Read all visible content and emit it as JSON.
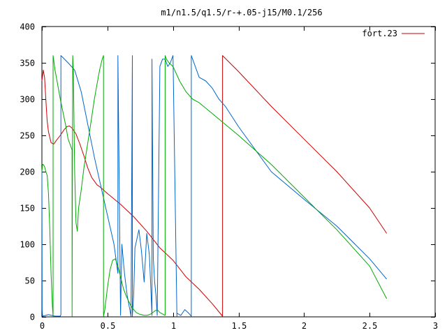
{
  "chart_data": {
    "type": "line",
    "title": "m1/n1.5/q1.5/r-+.05-j15/M0.1/256",
    "xlabel": "",
    "ylabel": "",
    "xlim": [
      0,
      3
    ],
    "ylim": [
      0,
      400
    ],
    "xticks": [
      0,
      0.5,
      1,
      1.5,
      2,
      2.5,
      3
    ],
    "xtick_labels": [
      "0",
      "0.5",
      "1",
      "1.5",
      "2",
      "2.5",
      "3"
    ],
    "yticks": [
      0,
      50,
      100,
      150,
      200,
      250,
      300,
      350,
      400
    ],
    "ytick_labels": [
      "0",
      "50",
      "100",
      "150",
      "200",
      "250",
      "300",
      "350",
      "400"
    ],
    "grid": false,
    "legend": {
      "position": "top-right",
      "entries": [
        "fort.23"
      ]
    },
    "series": [
      {
        "name": "fort.23",
        "color": "#cc0000",
        "x": [
          0,
          0.01,
          0.02,
          0.03,
          0.04,
          0.05,
          0.07,
          0.09,
          0.11,
          0.14,
          0.17,
          0.19,
          0.21,
          0.23,
          0.26,
          0.29,
          0.32,
          0.35,
          0.38,
          0.42,
          0.45,
          0.5,
          0.6,
          0.7,
          0.8,
          0.9,
          1.0,
          1.1,
          1.2,
          1.3,
          1.378,
          1.378,
          1.5,
          1.75,
          2.0,
          2.25,
          2.5,
          2.63
        ],
        "y": [
          325,
          340,
          330,
          300,
          270,
          255,
          240,
          238,
          243,
          250,
          258,
          262,
          263,
          260,
          252,
          238,
          222,
          205,
          192,
          182,
          178,
          170,
          155,
          138,
          118,
          95,
          78,
          55,
          38,
          18,
          1,
          360,
          338,
          290,
          245,
          200,
          150,
          115
        ]
      },
      {
        "name": "",
        "color": "#0066cc",
        "x": [
          0,
          0.002,
          0.005,
          0.05,
          0.1,
          0.14,
          0.145,
          0.145,
          0.2,
          0.25,
          0.3,
          0.35,
          0.4,
          0.45,
          0.5,
          0.55,
          0.58,
          0.58,
          0.6,
          0.61,
          0.63,
          0.65,
          0.68,
          0.69,
          0.69,
          0.7,
          0.71,
          0.74,
          0.76,
          0.78,
          0.8,
          0.82,
          0.84,
          0.84,
          0.85,
          0.86,
          0.87,
          0.88,
          0.9,
          0.92,
          0.94,
          0.96,
          0.98,
          1.0,
          1.03,
          1.03,
          1.06,
          1.09,
          1.12,
          1.14,
          1.14,
          1.2,
          1.25,
          1.3,
          1.35,
          1.4,
          1.5,
          1.75,
          2.0,
          2.25,
          2.5,
          2.63
        ],
        "y": [
          200,
          10,
          1,
          3,
          1,
          1,
          3,
          360,
          350,
          340,
          310,
          265,
          220,
          180,
          140,
          100,
          60,
          360,
          2,
          100,
          60,
          30,
          1,
          360,
          1,
          30,
          95,
          120,
          90,
          48,
          115,
          85,
          2,
          355,
          80,
          48,
          30,
          2,
          345,
          355,
          355,
          345,
          350,
          360,
          1,
          5,
          2,
          10,
          5,
          1,
          360,
          330,
          325,
          315,
          300,
          290,
          262,
          200,
          162,
          125,
          80,
          52
        ]
      },
      {
        "name": "",
        "color": "#00aa00",
        "x": [
          0,
          0.005,
          0.01,
          0.02,
          0.03,
          0.04,
          0.05,
          0.06,
          0.07,
          0.08,
          0.085,
          0.085,
          0.1,
          0.14,
          0.18,
          0.2,
          0.23,
          0.23,
          0.235,
          0.24,
          0.25,
          0.26,
          0.27,
          0.28,
          0.3,
          0.32,
          0.35,
          0.38,
          0.4,
          0.42,
          0.44,
          0.46,
          0.47,
          0.47,
          0.48,
          0.5,
          0.52,
          0.54,
          0.56,
          0.58,
          0.6,
          0.62,
          0.64,
          0.66,
          0.68,
          0.7,
          0.72,
          0.74,
          0.76,
          0.78,
          0.8,
          0.82,
          0.84,
          0.86,
          0.88,
          0.9,
          0.92,
          0.94,
          0.94,
          0.95,
          0.97,
          1.0,
          1.05,
          1.1,
          1.15,
          1.2,
          1.3,
          1.4,
          1.5,
          1.75,
          2.0,
          2.25,
          2.5,
          2.63
        ],
        "y": [
          200,
          210,
          210,
          207,
          200,
          195,
          170,
          120,
          60,
          15,
          1,
          360,
          340,
          300,
          265,
          245,
          230,
          1,
          360,
          340,
          200,
          130,
          118,
          150,
          175,
          205,
          240,
          275,
          300,
          320,
          340,
          355,
          360,
          1,
          10,
          40,
          65,
          78,
          80,
          70,
          55,
          40,
          30,
          22,
          15,
          10,
          6,
          4,
          3,
          2,
          2,
          3,
          5,
          8,
          10,
          6,
          4,
          2,
          360,
          355,
          350,
          345,
          325,
          310,
          300,
          295,
          280,
          265,
          250,
          210,
          165,
          120,
          70,
          25
        ]
      }
    ]
  }
}
